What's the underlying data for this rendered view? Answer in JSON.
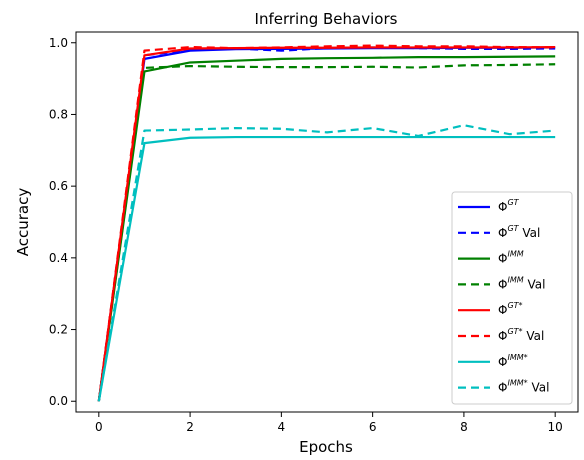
{
  "chart_data": {
    "type": "line",
    "title": "Inferring Behaviors",
    "xlabel": "Epochs",
    "ylabel": "Accuracy",
    "xlim": [
      -0.5,
      10.5
    ],
    "ylim": [
      -0.03,
      1.03
    ],
    "x_ticks": [
      0,
      2,
      4,
      6,
      8,
      10
    ],
    "y_ticks": [
      0.0,
      0.2,
      0.4,
      0.6,
      0.8,
      1.0
    ],
    "x_tick_labels": [
      "0",
      "2",
      "4",
      "6",
      "8",
      "10"
    ],
    "y_tick_labels": [
      "0.0",
      "0.2",
      "0.4",
      "0.6",
      "0.8",
      "1.0"
    ],
    "grid": false,
    "legend_position": "bottom-right",
    "x": [
      0,
      1,
      2,
      3,
      4,
      5,
      6,
      7,
      8,
      9,
      10
    ],
    "series": [
      {
        "base": "Φ",
        "sup": "GT",
        "suffix": "",
        "color": "#0000ff",
        "dashed": false,
        "values": [
          0.0,
          0.955,
          0.978,
          0.982,
          0.983,
          0.984,
          0.985,
          0.985,
          0.986,
          0.986,
          0.987
        ]
      },
      {
        "base": "Φ",
        "sup": "GT",
        "suffix": " Val",
        "color": "#0000ff",
        "dashed": true,
        "values": [
          0.0,
          0.965,
          0.98,
          0.984,
          0.978,
          0.985,
          0.987,
          0.985,
          0.983,
          0.983,
          0.984
        ]
      },
      {
        "base": "Φ",
        "sup": "IMM",
        "suffix": "",
        "color": "#008000",
        "dashed": false,
        "values": [
          0.0,
          0.92,
          0.945,
          0.95,
          0.955,
          0.957,
          0.958,
          0.96,
          0.96,
          0.961,
          0.962
        ]
      },
      {
        "base": "Φ",
        "sup": "IMM",
        "suffix": " Val",
        "color": "#008000",
        "dashed": true,
        "values": [
          0.0,
          0.93,
          0.935,
          0.933,
          0.932,
          0.932,
          0.933,
          0.931,
          0.937,
          0.938,
          0.94
        ]
      },
      {
        "base": "Φ",
        "sup": "GT*",
        "suffix": "",
        "color": "#ff0000",
        "dashed": false,
        "values": [
          0.0,
          0.965,
          0.984,
          0.985,
          0.986,
          0.986,
          0.987,
          0.987,
          0.987,
          0.987,
          0.988
        ]
      },
      {
        "base": "Φ",
        "sup": "GT*",
        "suffix": " Val",
        "color": "#ff0000",
        "dashed": true,
        "values": [
          0.0,
          0.978,
          0.988,
          0.985,
          0.987,
          0.99,
          0.992,
          0.99,
          0.99,
          0.988,
          0.987
        ]
      },
      {
        "base": "Φ",
        "sup": "IMM*",
        "suffix": "",
        "color": "#00bfbf",
        "dashed": false,
        "values": [
          0.0,
          0.72,
          0.735,
          0.737,
          0.737,
          0.737,
          0.737,
          0.737,
          0.737,
          0.737,
          0.737
        ]
      },
      {
        "base": "Φ",
        "sup": "IMM*",
        "suffix": " Val",
        "color": "#00bfbf",
        "dashed": true,
        "values": [
          0.0,
          0.755,
          0.758,
          0.762,
          0.76,
          0.75,
          0.762,
          0.74,
          0.77,
          0.745,
          0.755
        ]
      }
    ]
  }
}
